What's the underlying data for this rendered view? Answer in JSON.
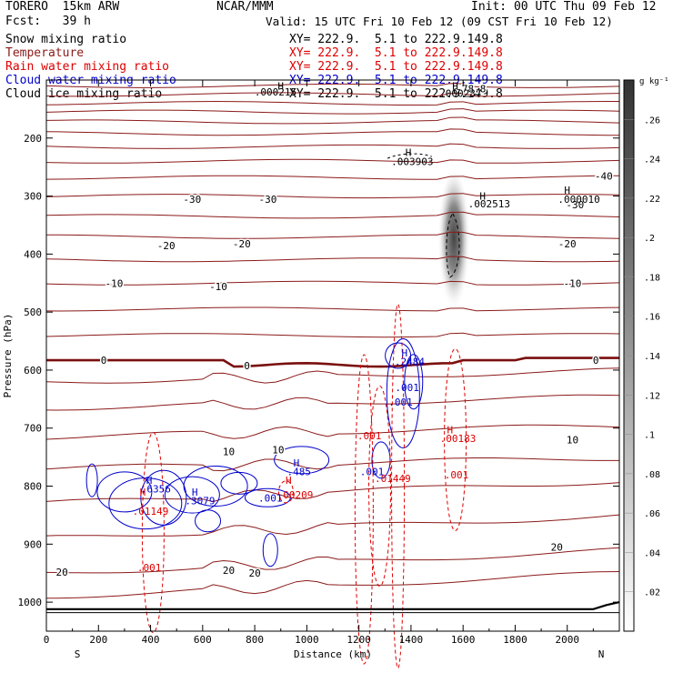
{
  "header": {
    "model": "TORERO  15km ARW",
    "fcst": "Fcst:   39 h",
    "center": "NCAR/MMM",
    "init": "Init: 00 UTC Thu 09 Feb 12",
    "valid": "Valid: 15 UTC Fri 10 Feb 12 (09 CST Fri 10 Feb 12)"
  },
  "legend": [
    {
      "name": "Snow mixing ratio",
      "coords": "XY= 222.9.  5.1 to 222.9.149.8",
      "color": "#000000"
    },
    {
      "name": "Temperature",
      "coords": "XY= 222.9.  5.1 to 222.9.149.8",
      "color": "#8b1a1a"
    },
    {
      "name": "Rain water mixing ratio",
      "coords": "XY= 222.9.  5.1 to 222.9.149.8",
      "color": "#dd0000"
    },
    {
      "name": "Cloud water mixing ratio",
      "coords": "XY= 222.9.  5.1 to 222.9.149.8",
      "color": "#0000cc"
    },
    {
      "name": "Cloud ice mixing ratio",
      "coords": "XY= 222.9.  5.1 to 222.9.149.8",
      "color": "#000000"
    }
  ],
  "chart_data": {
    "type": "cross-section",
    "xlabel": "Distance (km)",
    "ylabel": "Pressure (hPa)",
    "x_range": [
      0,
      2200
    ],
    "y_range": [
      1050,
      100
    ],
    "x_ticks": [
      0,
      200,
      400,
      600,
      800,
      1000,
      1200,
      1400,
      1600,
      1800,
      2000
    ],
    "y_ticks": [
      200,
      300,
      400,
      500,
      600,
      700,
      800,
      900,
      1000
    ],
    "x_endpoints": {
      "left": "S",
      "right": "N"
    },
    "colorbar": {
      "unit": "g kg⁻¹",
      "ticks": [
        ".02",
        ".04",
        ".06",
        ".08",
        ".1",
        ".12",
        ".14",
        ".16",
        ".18",
        ".2",
        ".22",
        ".24",
        ".26"
      ]
    },
    "temperature_labels": [
      {
        "text": "-78.8",
        "x": 1630,
        "p": 115
      },
      {
        "text": "-40",
        "x": 2140,
        "p": 265
      },
      {
        "text": "-30",
        "x": 560,
        "p": 305
      },
      {
        "text": "-30",
        "x": 850,
        "p": 305
      },
      {
        "text": "-30",
        "x": 2030,
        "p": 315
      },
      {
        "text": "-20",
        "x": 460,
        "p": 385
      },
      {
        "text": "-20",
        "x": 750,
        "p": 382
      },
      {
        "text": "-20",
        "x": 2000,
        "p": 382
      },
      {
        "text": "-10",
        "x": 260,
        "p": 450
      },
      {
        "text": "-10",
        "x": 660,
        "p": 456
      },
      {
        "text": "-10",
        "x": 2020,
        "p": 450
      },
      {
        "text": "0",
        "x": 220,
        "p": 583
      },
      {
        "text": "0",
        "x": 770,
        "p": 592
      },
      {
        "text": "0",
        "x": 2110,
        "p": 583
      },
      {
        "text": "10",
        "x": 700,
        "p": 740
      },
      {
        "text": "10",
        "x": 890,
        "p": 737
      },
      {
        "text": "10",
        "x": 2020,
        "p": 720
      },
      {
        "text": "20",
        "x": 60,
        "p": 948
      },
      {
        "text": "20",
        "x": 700,
        "p": 945
      },
      {
        "text": "20",
        "x": 800,
        "p": 950
      },
      {
        "text": "20",
        "x": 1960,
        "p": 905
      }
    ],
    "rain_labels": [
      {
        "text": "H",
        "x": 370,
        "p": 810
      },
      {
        "text": ".01149",
        "x": 400,
        "p": 843
      },
      {
        "text": ".001",
        "x": 395,
        "p": 940
      },
      {
        "text": "H",
        "x": 930,
        "p": 790
      },
      {
        "text": ".00209",
        "x": 955,
        "p": 815
      },
      {
        "text": ".001",
        "x": 1240,
        "p": 713
      },
      {
        "text": ".01449",
        "x": 1330,
        "p": 787
      },
      {
        "text": "H",
        "x": 1550,
        "p": 703
      },
      {
        "text": ".00183",
        "x": 1580,
        "p": 718
      },
      {
        "text": ".001",
        "x": 1575,
        "p": 780
      }
    ],
    "cloud_water_labels": [
      {
        "text": "H",
        "x": 395,
        "p": 790
      },
      {
        "text": ".6356",
        "x": 420,
        "p": 805
      },
      {
        "text": "H",
        "x": 570,
        "p": 810
      },
      {
        "text": ".3079",
        "x": 590,
        "p": 825
      },
      {
        "text": ".001",
        "x": 860,
        "p": 820
      },
      {
        "text": "H",
        "x": 960,
        "p": 760
      },
      {
        "text": ".485",
        "x": 970,
        "p": 775
      },
      {
        "text": "H",
        "x": 1375,
        "p": 570
      },
      {
        "text": ".2484",
        "x": 1395,
        "p": 585
      },
      {
        "text": ".001",
        "x": 1385,
        "p": 630
      },
      {
        "text": ".001",
        "x": 1360,
        "p": 655
      },
      {
        "text": ".001",
        "x": 1250,
        "p": 775
      }
    ],
    "snow_labels": [
      {
        "text": "H",
        "x": 1390,
        "p": 225
      },
      {
        "text": ".003903",
        "x": 1405,
        "p": 240
      }
    ],
    "ice_labels": [
      {
        "text": "H",
        "x": 2000,
        "p": 290
      },
      {
        "text": ".000010",
        "x": 2045,
        "p": 305
      },
      {
        "text": "H",
        "x": 1675,
        "p": 300
      },
      {
        "text": ".002513",
        "x": 1700,
        "p": 313
      }
    ],
    "top_labels": [
      {
        "text": "H",
        "x": 900,
        "p": 110
      },
      {
        "text": ".000215",
        "x": 880,
        "p": 120
      },
      {
        "text": "H",
        "x": 1570,
        "p": 110
      },
      {
        "text": ".000237",
        "x": 1590,
        "p": 123
      }
    ]
  }
}
